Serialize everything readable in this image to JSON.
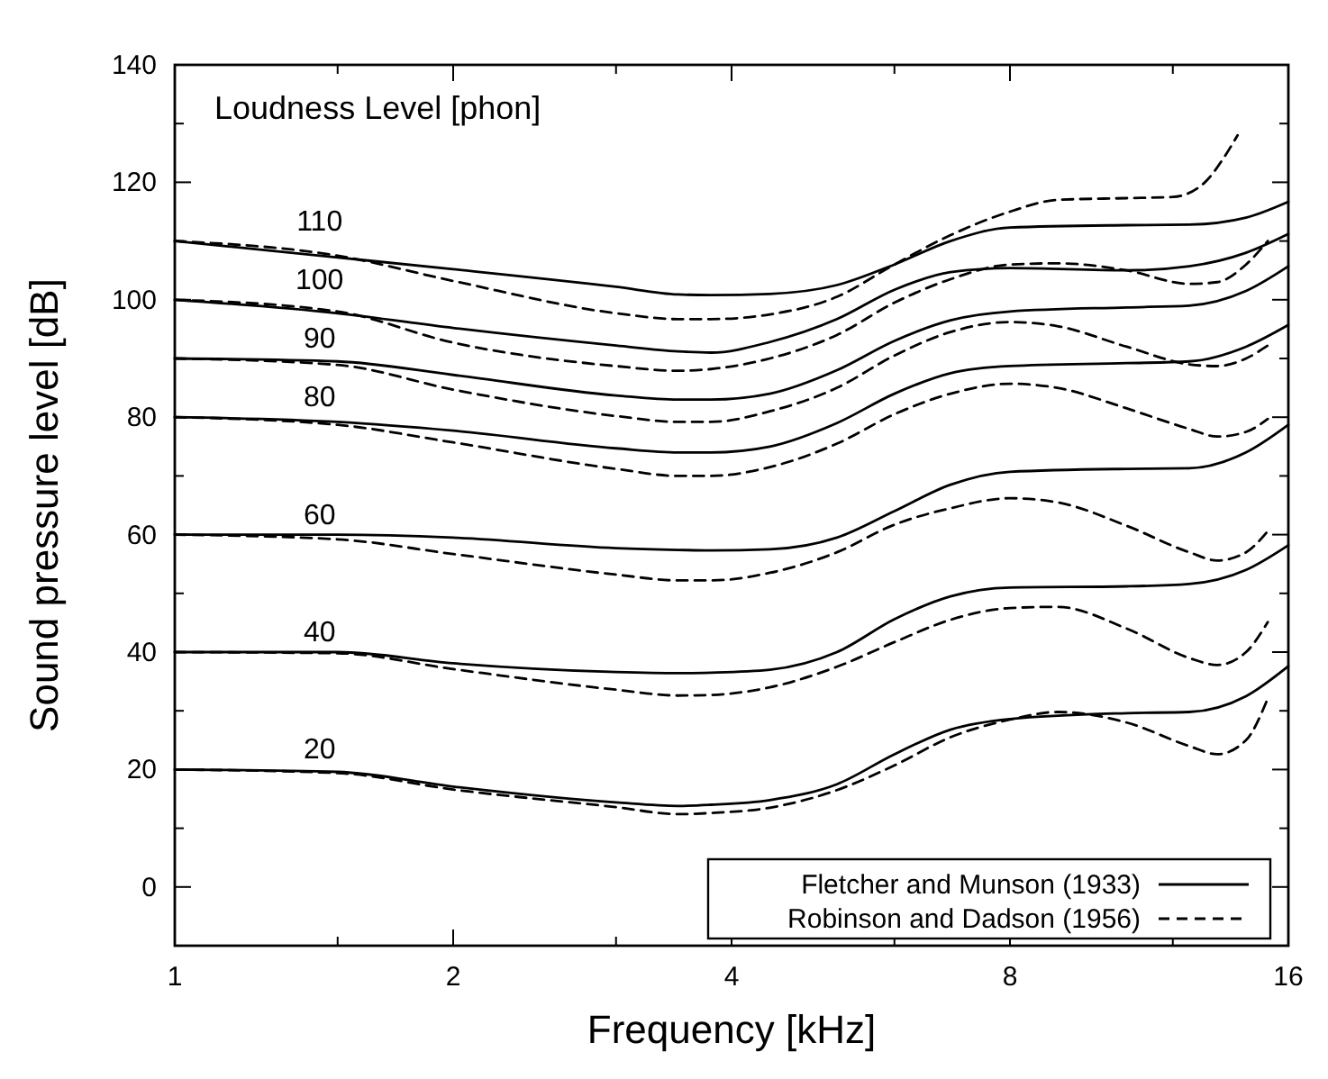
{
  "chart_data": {
    "type": "line",
    "xlabel": "Frequency [kHz]",
    "ylabel": "Sound pressure level [dB]",
    "log": "x",
    "xlim": [
      1,
      16
    ],
    "ylim": [
      -10,
      140
    ],
    "xticks": [
      1,
      {
        "value": 1.5,
        "label": null
      },
      2,
      {
        "value": 3,
        "label": null
      },
      4,
      {
        "value": 6,
        "label": null
      },
      8,
      {
        "value": 12,
        "label": null
      },
      16
    ],
    "yticks": [
      {
        "value": -10,
        "label": null
      },
      0,
      {
        "value": 10,
        "label": null
      },
      20,
      {
        "value": 30,
        "label": null
      },
      40,
      {
        "value": 50,
        "label": null
      },
      60,
      {
        "value": 70,
        "label": null
      },
      80,
      {
        "value": 90,
        "label": null
      },
      100,
      {
        "value": 110,
        "label": null
      },
      120,
      {
        "value": 130,
        "label": null
      },
      140
    ],
    "grid": false,
    "legend": "bottom right",
    "marker": "none",
    "annotations": [
      "Loudness Level [phon]",
      "110",
      "100",
      "90",
      "80",
      "60",
      "40",
      "20"
    ],
    "series": [
      {
        "name": "Fletcher and Munson (1933)",
        "color": "#000000",
        "line_style": "solid",
        "x": [
          1,
          1.5,
          2,
          3,
          3.5,
          3.8,
          4.4,
          5.2,
          6,
          6.9,
          8,
          10.7,
          12.5,
          14.4,
          16
        ],
        "values": [
          110,
          107.2,
          105.2,
          102.2,
          100.9,
          100.8,
          101,
          102.5,
          106,
          110,
          112.3,
          112.7,
          112.8,
          114,
          116.7
        ]
      },
      {
        "color": "#000000",
        "line_style": "solid",
        "x": [
          1,
          1.5,
          2,
          3,
          3.5,
          3.8,
          4.4,
          5.2,
          6,
          6.9,
          8,
          10.7,
          12.5,
          14.4,
          16
        ],
        "values": [
          100,
          97.7,
          95.2,
          92.2,
          91.2,
          91,
          92.8,
          96.7,
          101.7,
          104.7,
          105.4,
          105,
          105.7,
          108,
          111.2
        ]
      },
      {
        "color": "#000000",
        "line_style": "solid",
        "x": [
          1,
          1.5,
          2,
          3,
          3.5,
          3.8,
          4.4,
          5.2,
          6,
          6.9,
          8,
          10.7,
          12.5,
          14.4,
          16
        ],
        "values": [
          90,
          89.5,
          87.2,
          83.7,
          83,
          83,
          84,
          88,
          93,
          96.5,
          98,
          98.7,
          99,
          101.5,
          105.7
        ]
      },
      {
        "color": "#000000",
        "line_style": "solid",
        "x": [
          1,
          1.5,
          2,
          3,
          3.5,
          3.8,
          4.4,
          5.2,
          6,
          6.9,
          8,
          10.7,
          12.5,
          14.4,
          16
        ],
        "values": [
          80,
          79.2,
          77.7,
          74.7,
          74,
          74,
          75,
          79,
          84,
          87.5,
          88.7,
          89.2,
          89.5,
          92,
          95.7
        ]
      },
      {
        "color": "#000000",
        "line_style": "solid",
        "x": [
          1,
          1.5,
          2,
          3,
          3.5,
          3.8,
          4.4,
          5.2,
          6,
          6.9,
          8,
          10.7,
          12.5,
          14.4,
          16
        ],
        "values": [
          60,
          60,
          59.5,
          57.7,
          57.4,
          57.3,
          57.5,
          59.5,
          64,
          68.5,
          70.7,
          71.2,
          71.3,
          74,
          78.7
        ]
      },
      {
        "color": "#000000",
        "line_style": "solid",
        "x": [
          1,
          1.5,
          2,
          3,
          3.5,
          3.8,
          4.4,
          5.2,
          6,
          6.9,
          8,
          10.7,
          12.5,
          14.4,
          16
        ],
        "values": [
          40,
          40,
          38.1,
          36.6,
          36.4,
          36.5,
          37,
          40,
          45.6,
          49.5,
          51,
          51.2,
          51.6,
          54,
          58.2
        ]
      },
      {
        "color": "#000000",
        "line_style": "solid",
        "x": [
          1,
          1.5,
          2,
          3,
          3.5,
          3.8,
          4.4,
          5.2,
          6,
          6.9,
          8,
          10.7,
          12.5,
          14.4,
          16
        ],
        "values": [
          20,
          19.6,
          17.1,
          14.4,
          13.8,
          14,
          14.8,
          17.5,
          22.6,
          26.8,
          28.6,
          29.6,
          29.8,
          32.5,
          37.6
        ]
      },
      {
        "name": "Robinson and Dadson (1956)",
        "color": "#000000",
        "line_style": "dashed",
        "x": [
          1,
          1.5,
          2,
          3,
          3.5,
          3.8,
          4.4,
          5.2,
          6,
          6.9,
          8,
          9,
          10.7,
          12,
          13,
          13.6,
          14.1
        ],
        "values": [
          110,
          107.5,
          103.2,
          97.7,
          96.7,
          96.7,
          97.5,
          100.5,
          106,
          111,
          115,
          117,
          117.3,
          117.5,
          120,
          124,
          128
        ]
      },
      {
        "color": "#000000",
        "line_style": "dashed",
        "x": [
          1,
          1.5,
          2,
          3,
          3.5,
          3.8,
          4.4,
          5.2,
          6,
          6.9,
          8,
          9,
          10.7,
          12.5,
          13.4,
          14.4,
          15.2
        ],
        "values": [
          100,
          98,
          92.7,
          88.7,
          87.9,
          88.2,
          90,
          94,
          99.5,
          103.5,
          106,
          106.2,
          105,
          102.7,
          103,
          106,
          110
        ]
      },
      {
        "color": "#000000",
        "line_style": "dashed",
        "x": [
          1,
          1.5,
          2,
          3,
          3.5,
          3.8,
          4.4,
          5.2,
          6,
          6.9,
          8,
          9,
          10.7,
          12.5,
          13.4,
          14.4,
          15.2
        ],
        "values": [
          90,
          88.9,
          84.7,
          80.2,
          79.2,
          79.2,
          81,
          85,
          90.5,
          94.5,
          96.2,
          95.5,
          92,
          89,
          88.7,
          90,
          92.2
        ]
      },
      {
        "color": "#000000",
        "line_style": "dashed",
        "x": [
          1,
          1.5,
          2,
          3,
          3.5,
          3.8,
          4.4,
          5.2,
          6,
          6.9,
          8,
          9,
          10.7,
          12.5,
          13.4,
          14.4,
          15.2
        ],
        "values": [
          80,
          78.7,
          75.7,
          71.2,
          70,
          70,
          71.5,
          75.5,
          80.5,
          84,
          85.7,
          85,
          81.5,
          78,
          76.7,
          77.5,
          79.7
        ]
      },
      {
        "color": "#000000",
        "line_style": "dashed",
        "x": [
          1,
          1.5,
          2,
          3,
          3.5,
          3.8,
          4.4,
          5.2,
          6,
          6.9,
          8,
          9,
          10.7,
          12.5,
          13.4,
          14.4,
          15.2
        ],
        "values": [
          60,
          59.2,
          56.7,
          53.2,
          52.2,
          52.2,
          53.5,
          57,
          61.7,
          64.5,
          66.2,
          65.5,
          61.5,
          57,
          55.6,
          57,
          60.6
        ]
      },
      {
        "color": "#000000",
        "line_style": "dashed",
        "x": [
          1,
          1.5,
          2,
          3,
          3.5,
          3.8,
          4.4,
          5.2,
          6,
          6.9,
          8,
          9,
          10.7,
          12.5,
          13.4,
          14.4,
          15.2
        ],
        "values": [
          40,
          39.8,
          37.1,
          33.6,
          32.6,
          32.7,
          34,
          37.5,
          41.7,
          45.5,
          47.5,
          47.7,
          44,
          39,
          37.8,
          40,
          45.1
        ]
      },
      {
        "color": "#000000",
        "line_style": "dashed",
        "x": [
          1,
          1.5,
          2,
          3,
          3.5,
          3.8,
          4.4,
          5.2,
          6,
          6.9,
          8,
          9,
          10.7,
          12.5,
          13.4,
          14.4,
          15.2
        ],
        "values": [
          20,
          19.4,
          16.6,
          13.6,
          12.4,
          12.6,
          13.5,
          16.5,
          20.7,
          25.5,
          28.5,
          29.8,
          28,
          24,
          22.6,
          25,
          32.1
        ]
      }
    ]
  }
}
